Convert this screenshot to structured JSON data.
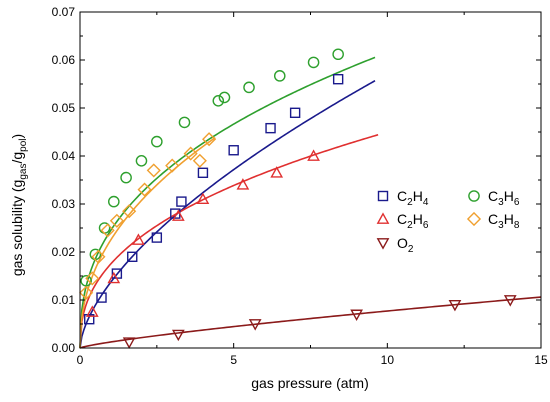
{
  "chart_data": {
    "type": "scatter",
    "xlabel": "gas pressure (atm)",
    "ylabel": "gas solubility (g",
    "ylabel_sub1": "gas",
    "ylabel_mid": "/g",
    "ylabel_sub2": "pol",
    "ylabel_end": ")",
    "xlim": [
      0,
      15
    ],
    "ylim": [
      0,
      0.07
    ],
    "x_ticks": [
      0,
      5,
      10,
      15
    ],
    "x_tick_labels": [
      "0",
      "5",
      "10",
      "15"
    ],
    "y_ticks": [
      0,
      0.01,
      0.02,
      0.03,
      0.04,
      0.05,
      0.06,
      0.07
    ],
    "y_tick_labels": [
      "0.00",
      "0.01",
      "0.02",
      "0.03",
      "0.04",
      "0.05",
      "0.06",
      "0.07"
    ],
    "legend_placement": "right",
    "series": [
      {
        "name_main": "C",
        "name_sub1": "2",
        "name_mid": "H",
        "name_sub2": "4",
        "color": "#1a1a8c",
        "marker": "square",
        "x": [
          0.3,
          0.7,
          1.2,
          1.7,
          2.5,
          3.1,
          3.3,
          4.0,
          5.0,
          6.2,
          7.0,
          8.4
        ],
        "y": [
          0.006,
          0.0105,
          0.0155,
          0.019,
          0.023,
          0.028,
          0.0305,
          0.0365,
          0.0412,
          0.0458,
          0.049,
          0.056
        ],
        "fit": {
          "a": 0.0137,
          "b": 0.62,
          "xmax": 9.6
        }
      },
      {
        "name_main": "C",
        "name_sub1": "2",
        "name_mid": "H",
        "name_sub2": "6",
        "color": "#e03030",
        "marker": "triangle-up",
        "x": [
          0.4,
          1.1,
          1.9,
          3.2,
          4.0,
          5.3,
          6.4,
          7.6
        ],
        "y": [
          0.0075,
          0.0145,
          0.0225,
          0.0275,
          0.031,
          0.034,
          0.0365,
          0.04
        ],
        "fit": {
          "a": 0.0175,
          "b": 0.41,
          "xmax": 9.7
        }
      },
      {
        "name_main": "O",
        "name_sub1": "2",
        "name_mid": "",
        "name_sub2": "",
        "color": "#8b1a1a",
        "marker": "triangle-down",
        "x": [
          1.6,
          3.2,
          5.7,
          9.0,
          12.2,
          14.0
        ],
        "y": [
          0.0012,
          0.0028,
          0.005,
          0.007,
          0.009,
          0.01
        ],
        "fit": {
          "a": 0.00125,
          "b": 0.79,
          "xmax": 15
        }
      },
      {
        "name_main": "C",
        "name_sub1": "3",
        "name_mid": "H",
        "name_sub2": "6",
        "color": "#2ea02e",
        "marker": "circle",
        "x": [
          0.2,
          0.5,
          0.8,
          1.1,
          1.5,
          2.0,
          2.5,
          3.4,
          4.5,
          4.7,
          5.5,
          6.5,
          7.6,
          8.4
        ],
        "y": [
          0.014,
          0.0195,
          0.025,
          0.0305,
          0.0355,
          0.039,
          0.043,
          0.047,
          0.0515,
          0.0522,
          0.0543,
          0.0567,
          0.0595,
          0.0612
        ],
        "fit": {
          "a": 0.0245,
          "b": 0.4,
          "xmax": 9.6
        }
      },
      {
        "name_main": "C",
        "name_sub1": "3",
        "name_mid": "H",
        "name_sub2": "8",
        "color": "#f0a030",
        "marker": "diamond",
        "x": [
          0.2,
          0.4,
          0.6,
          0.9,
          1.2,
          1.6,
          2.1,
          2.4,
          3.0,
          3.6,
          3.9,
          4.2
        ],
        "y": [
          0.0115,
          0.0145,
          0.019,
          0.0245,
          0.0265,
          0.0285,
          0.033,
          0.037,
          0.038,
          0.0405,
          0.039,
          0.0435
        ],
        "fit": {
          "a": 0.0225,
          "b": 0.45,
          "xmax": 4.4
        }
      }
    ]
  }
}
